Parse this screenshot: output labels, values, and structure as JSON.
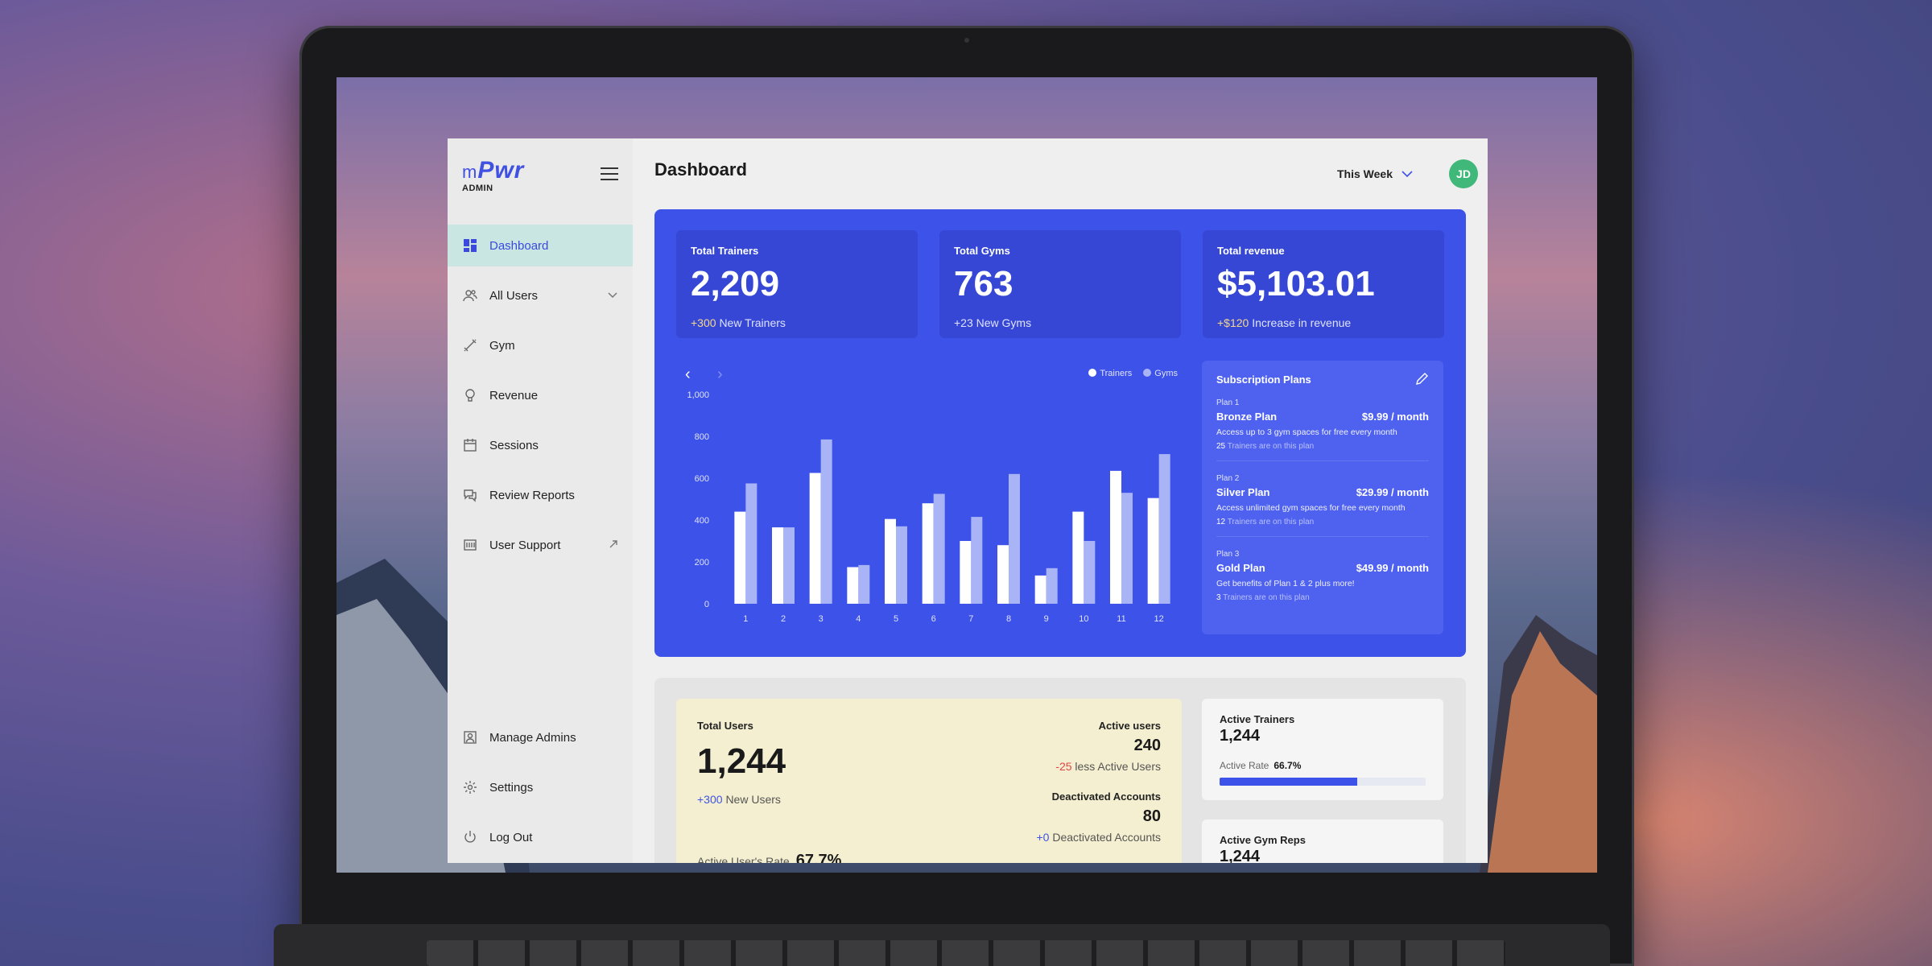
{
  "brand": {
    "logo_prefix": "m",
    "logo_main": "Pwr",
    "logo_sub": "ADMIN"
  },
  "sidebar": {
    "items": [
      {
        "label": "Dashboard",
        "icon": "dashboard-icon",
        "active": true
      },
      {
        "label": "All Users",
        "icon": "users-icon"
      },
      {
        "label": "Gym",
        "icon": "dumbbell-icon"
      },
      {
        "label": "Revenue",
        "icon": "revenue-icon"
      },
      {
        "label": "Sessions",
        "icon": "calendar-icon"
      },
      {
        "label": "Review Reports",
        "icon": "chat-icon"
      },
      {
        "label": "User Support",
        "icon": "support-icon"
      }
    ],
    "bottom_items": [
      {
        "label": "Manage Admins",
        "icon": "admin-icon"
      },
      {
        "label": "Settings",
        "icon": "gear-icon"
      },
      {
        "label": "Log Out",
        "icon": "power-icon"
      }
    ]
  },
  "header": {
    "title": "Dashboard",
    "period": "This Week",
    "avatar_initials": "JD"
  },
  "stats": [
    {
      "label": "Total Trainers",
      "value": "2,209",
      "delta": "+300",
      "delta_text": "New Trainers"
    },
    {
      "label": "Total Gyms",
      "value": "763",
      "delta": "+23",
      "delta_text": "New Gyms"
    },
    {
      "label": "Total revenue",
      "value": "$5,103.01",
      "delta": "+$120",
      "delta_text": "Increase in revenue"
    }
  ],
  "chart_data": {
    "type": "bar",
    "categories": [
      "1",
      "2",
      "3",
      "4",
      "5",
      "6",
      "7",
      "8",
      "9",
      "10",
      "11",
      "12"
    ],
    "series": [
      {
        "name": "Trainers",
        "color": "#ffffff",
        "values": [
          440,
          365,
          625,
          175,
          405,
          480,
          300,
          280,
          135,
          440,
          635,
          505
        ]
      },
      {
        "name": "Gyms",
        "color": "#a9b4f7",
        "values": [
          575,
          365,
          785,
          185,
          370,
          525,
          415,
          620,
          170,
          300,
          530,
          715
        ]
      }
    ],
    "yticks": [
      "0",
      "200",
      "400",
      "600",
      "800",
      "1,000"
    ],
    "ylim": [
      0,
      1000
    ],
    "grid": false,
    "legend": "top-right"
  },
  "plans": {
    "title": "Subscription Plans",
    "items": [
      {
        "num": "Plan 1",
        "name": "Bronze Plan",
        "price": "$9.99 / month",
        "desc": "Access up to 3 gym spaces for free every month",
        "count": "25",
        "count_text": "Trainers are on this plan"
      },
      {
        "num": "Plan 2",
        "name": "Silver Plan",
        "price": "$29.99 / month",
        "desc": "Access unlimited gym spaces for free every month",
        "count": "12",
        "count_text": "Trainers are on this plan"
      },
      {
        "num": "Plan 3",
        "name": "Gold Plan",
        "price": "$49.99 / month",
        "desc": "Get benefits of Plan 1 & 2 plus more!",
        "count": "3",
        "count_text": "Trainers are on this plan"
      }
    ]
  },
  "users": {
    "label": "Total Users",
    "value": "1,244",
    "delta": "+300",
    "delta_text": "New Users",
    "rate_label": "Active User's Rate",
    "rate": "67.7%",
    "active_label": "Active users",
    "active_value": "240",
    "active_delta": "-25",
    "active_delta_text": "less Active Users",
    "deact_label": "Deactivated Accounts",
    "deact_value": "80",
    "deact_delta": "+0",
    "deact_delta_text": "Deactivated Accounts"
  },
  "active_trainers": {
    "label": "Active Trainers",
    "value": "1,244",
    "rate_label": "Active Rate",
    "rate": "66.7%",
    "rate_fraction": 0.667
  },
  "active_gym_reps": {
    "label": "Active Gym Reps",
    "value": "1,244"
  }
}
